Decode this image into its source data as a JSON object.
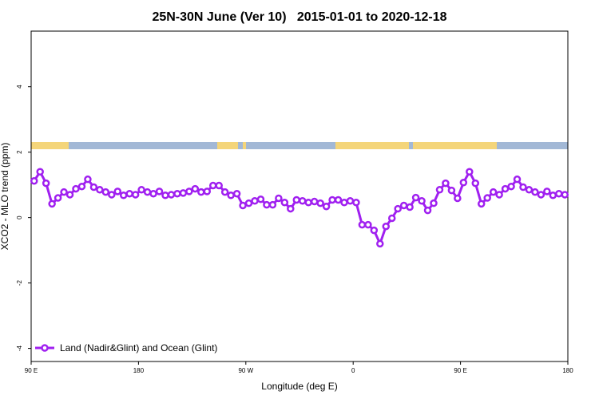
{
  "chart_data": {
    "type": "line",
    "title": "25N-30N June (Ver 10)   2015-01-01 to 2020-12-18",
    "x_label": "Longitude (deg E)",
    "y_label": "XCO2 - MLO trend (ppm)",
    "xlim": [
      90,
      540
    ],
    "xticks": [
      {
        "value": 90,
        "label": "90 E"
      },
      180,
      {
        "value": 270,
        "label": "90 W"
      },
      {
        "value": 360,
        "label": "0"
      },
      {
        "value": 450,
        "label": "90 E"
      },
      {
        "value": 540,
        "label": "180"
      }
    ],
    "ylim": [
      -4.4,
      5.7
    ],
    "yticks": [
      -4,
      -2,
      0,
      2,
      4
    ],
    "legend": "bottom-left",
    "x": [
      92.5,
      97.5,
      102.5,
      107.5,
      112.5,
      117.5,
      122.5,
      127.5,
      132.5,
      137.5,
      142.5,
      147.5,
      152.5,
      157.5,
      162.5,
      167.5,
      172.5,
      177.5,
      182.5,
      187.5,
      192.5,
      197.5,
      202.5,
      207.5,
      212.5,
      217.5,
      222.5,
      227.5,
      232.5,
      237.5,
      242.5,
      247.5,
      252.5,
      257.5,
      262.5,
      267.5,
      272.5,
      277.5,
      282.5,
      287.5,
      292.5,
      297.5,
      302.5,
      307.5,
      312.5,
      317.5,
      322.5,
      327.5,
      332.5,
      337.5,
      342.5,
      347.5,
      352.5,
      357.5,
      362.5,
      367.5,
      372.5,
      377.5,
      382.5,
      387.5,
      392.5,
      397.5,
      402.5,
      407.5,
      412.5,
      417.5,
      422.5,
      427.5,
      432.5,
      437.5,
      442.5,
      447.5,
      452.5,
      457.5,
      462.5,
      467.5,
      472.5,
      477.5,
      482.5,
      487.5,
      492.5,
      497.5,
      502.5,
      507.5,
      512.5,
      517.5,
      522.5,
      527.5,
      532.5,
      537.5
    ],
    "series": [
      {
        "name": "Land (Nadir&Glint) and Ocean (Glint)",
        "color": "#a020f0",
        "values": [
          1.12,
          1.4,
          1.05,
          0.42,
          0.6,
          0.78,
          0.7,
          0.88,
          0.95,
          1.17,
          0.93,
          0.85,
          0.78,
          0.7,
          0.8,
          0.68,
          0.73,
          0.7,
          0.85,
          0.78,
          0.73,
          0.8,
          0.68,
          0.7,
          0.73,
          0.75,
          0.8,
          0.88,
          0.78,
          0.8,
          0.98,
          0.98,
          0.78,
          0.68,
          0.73,
          0.37,
          0.44,
          0.51,
          0.56,
          0.39,
          0.39,
          0.59,
          0.46,
          0.27,
          0.54,
          0.51,
          0.46,
          0.49,
          0.44,
          0.34,
          0.54,
          0.54,
          0.46,
          0.51,
          0.46,
          -0.22,
          -0.22,
          -0.39,
          -0.8,
          -0.27,
          -0.02,
          0.27,
          0.37,
          0.32,
          0.61,
          0.51,
          0.22,
          0.44,
          0.85,
          1.05,
          0.83,
          0.59,
          1.07,
          1.4,
          1.05,
          0.42,
          0.6,
          0.78,
          0.7,
          0.88,
          0.95,
          1.17,
          0.93,
          0.85,
          0.78,
          0.7,
          0.8,
          0.68,
          0.73,
          0.7
        ]
      }
    ]
  }
}
